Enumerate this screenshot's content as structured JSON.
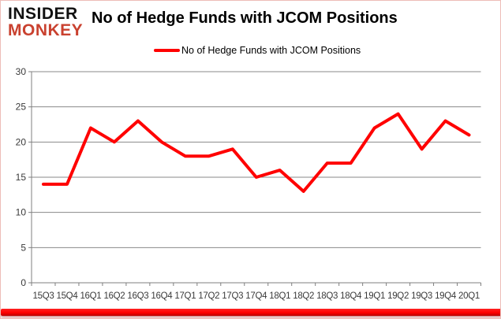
{
  "brand": {
    "line1": "INSIDER",
    "line2": "MONKEY",
    "accent_color": "#c9412f"
  },
  "header": {
    "title": "No of Hedge Funds with JCOM Positions"
  },
  "legend": {
    "label": "No of Hedge Funds with JCOM Positions",
    "marker_color": "#ff0000"
  },
  "chart_data": {
    "type": "line",
    "title": "No of Hedge Funds with JCOM Positions",
    "categories": [
      "15Q3",
      "15Q4",
      "16Q1",
      "16Q2",
      "16Q3",
      "16Q4",
      "17Q1",
      "17Q2",
      "17Q3",
      "17Q4",
      "18Q1",
      "18Q2",
      "18Q3",
      "18Q4",
      "19Q1",
      "19Q2",
      "19Q3",
      "19Q4",
      "20Q1"
    ],
    "series": [
      {
        "name": "No of Hedge Funds with JCOM Positions",
        "color": "#ff0000",
        "values": [
          14,
          14,
          22,
          20,
          23,
          20,
          18,
          18,
          19,
          15,
          16,
          13,
          17,
          17,
          22,
          24,
          19,
          23,
          21
        ]
      }
    ],
    "xlabel": "",
    "ylabel": "",
    "ylim": [
      0,
      30
    ],
    "ytick_step": 5,
    "grid": true,
    "legend_position": "top-center",
    "gridline_color": "#8a8a8a",
    "axis_color": "#7f7f7f",
    "tick_label_color": "#3a3a3a"
  },
  "footer": {
    "bar_color": "#ff0000"
  }
}
